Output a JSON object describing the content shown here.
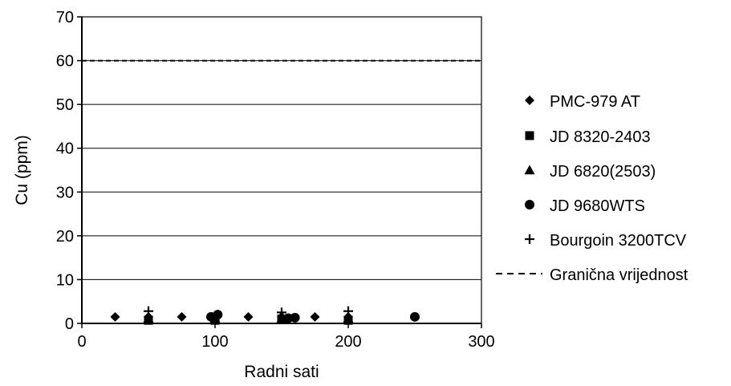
{
  "chart_data": {
    "type": "scatter",
    "xlabel": "Radni sati",
    "ylabel": "Cu (ppm)",
    "xlim": [
      0,
      300
    ],
    "ylim": [
      0,
      70
    ],
    "xticks": [
      0,
      100,
      200,
      300
    ],
    "yticks": [
      0,
      10,
      20,
      30,
      40,
      50,
      60,
      70
    ],
    "grid": "horizontal",
    "legend_position": "right",
    "series": [
      {
        "name": "PMC-979 AT",
        "marker": "diamond",
        "color": "#000000",
        "points": [
          [
            25,
            1.5
          ],
          [
            50,
            1.5
          ],
          [
            75,
            1.5
          ],
          [
            100,
            1.5
          ],
          [
            125,
            1.5
          ],
          [
            150,
            1.5
          ],
          [
            175,
            1.5
          ],
          [
            200,
            1.5
          ]
        ]
      },
      {
        "name": "JD 8320-2403",
        "marker": "square",
        "color": "#000000",
        "points": [
          [
            50,
            0.7
          ],
          [
            100,
            0.7
          ],
          [
            150,
            1.0
          ],
          [
            200,
            0.7
          ]
        ]
      },
      {
        "name": "JD 6820(2503)",
        "marker": "triangle",
        "color": "#000000",
        "points": [
          [
            50,
            1.2
          ],
          [
            100,
            1.2
          ],
          [
            150,
            1.2
          ],
          [
            200,
            1.2
          ]
        ]
      },
      {
        "name": "JD 9680WTS",
        "marker": "circle",
        "color": "#000000",
        "points": [
          [
            97,
            1.5
          ],
          [
            102,
            2.0
          ],
          [
            155,
            1.2
          ],
          [
            160,
            1.3
          ],
          [
            250,
            1.5
          ]
        ]
      },
      {
        "name": "Bourgoin 3200TCV",
        "marker": "plus",
        "color": "#000000",
        "points": [
          [
            50,
            2.8
          ],
          [
            150,
            2.5
          ],
          [
            200,
            2.8
          ]
        ]
      }
    ],
    "reference_lines": [
      {
        "name": "Granična vrijednost",
        "y": 60,
        "style": "dashed",
        "color": "#000000"
      }
    ]
  }
}
